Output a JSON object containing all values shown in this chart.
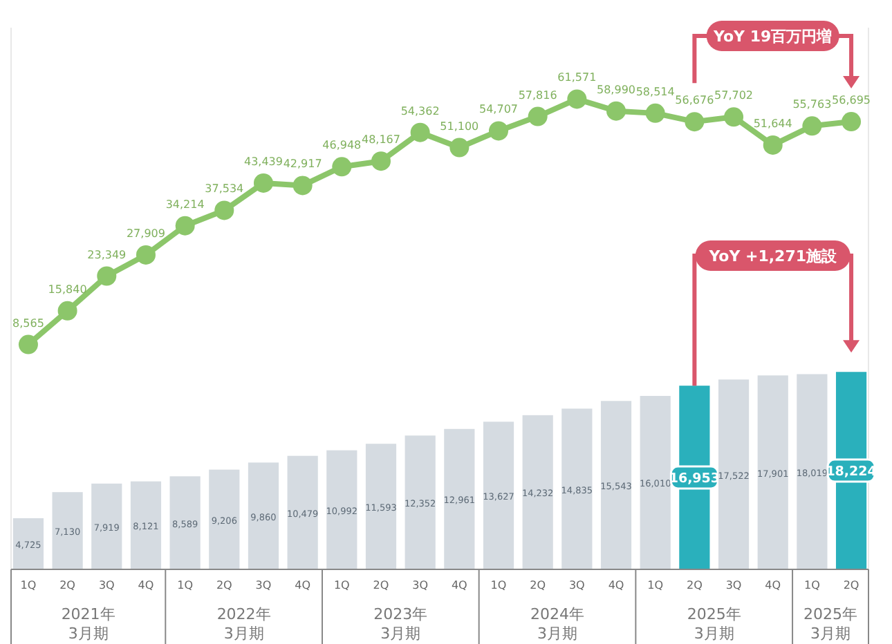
{
  "chart_data": {
    "type": "bar",
    "categories": [
      "1Q",
      "2Q",
      "3Q",
      "4Q",
      "1Q",
      "2Q",
      "3Q",
      "4Q",
      "1Q",
      "2Q",
      "3Q",
      "4Q",
      "1Q",
      "2Q",
      "3Q",
      "4Q",
      "1Q",
      "2Q",
      "3Q",
      "4Q",
      "1Q",
      "2Q"
    ],
    "series": [
      {
        "values": [
          4725,
          7130,
          7919,
          8121,
          8589,
          9206,
          9860,
          10479,
          10992,
          11593,
          12352,
          12961,
          13627,
          14232,
          14835,
          15543,
          16010,
          16953,
          17522,
          17901,
          18019,
          18224
        ],
        "value_labels": [
          "4,725",
          "7,130",
          "7,919",
          "8,121",
          "8,589",
          "9,206",
          "9,860",
          "10,479",
          "10,992",
          "11,593",
          "12,352",
          "12,961",
          "13,627",
          "14,232",
          "14,835",
          "15,543",
          "16,010",
          "16,953",
          "17,522",
          "17,901",
          "18,019",
          "18,224"
        ],
        "colors": [
          "#d5dbe1",
          "#d5dbe1",
          "#d5dbe1",
          "#d5dbe1",
          "#d5dbe1",
          "#d5dbe1",
          "#d5dbe1",
          "#d5dbe1",
          "#d5dbe1",
          "#d5dbe1",
          "#d5dbe1",
          "#d5dbe1",
          "#d5dbe1",
          "#d5dbe1",
          "#d5dbe1",
          "#d5dbe1",
          "#d5dbe1",
          "#2ab0bc",
          "#d5dbe1",
          "#d5dbe1",
          "#d5dbe1",
          "#2ab0bc"
        ]
      },
      {
        "type": "line",
        "axis": "y2",
        "color": "#8cc66a",
        "values": [
          8565,
          15840,
          23349,
          27909,
          34214,
          37534,
          43439,
          42917,
          46948,
          48167,
          54362,
          51100,
          54707,
          57816,
          61571,
          58990,
          58514,
          56676,
          57702,
          51644,
          55763,
          56695
        ],
        "value_labels": [
          "8,565",
          "15,840",
          "23,349",
          "27,909",
          "34,214",
          "37,534",
          "43,439",
          "42,917",
          "46,948",
          "48,167",
          "54,362",
          "51,100",
          "54,707",
          "57,816",
          "61,571",
          "58,990",
          "58,514",
          "56,676",
          "57,702",
          "51,644",
          "55,763",
          "56,695"
        ]
      }
    ],
    "ylim": [
      0,
      50000
    ],
    "y2lim": [
      -40000,
      77000
    ],
    "marker": "circle",
    "annotations": [
      "YoY 19百万円増",
      "YoY +1,271施設",
      "2021年\n3月期",
      "2022年\n3月期",
      "2023年\n3月期",
      "2024年\n3月期",
      "2025年\n3月期",
      "2025年\n3月期"
    ]
  }
}
